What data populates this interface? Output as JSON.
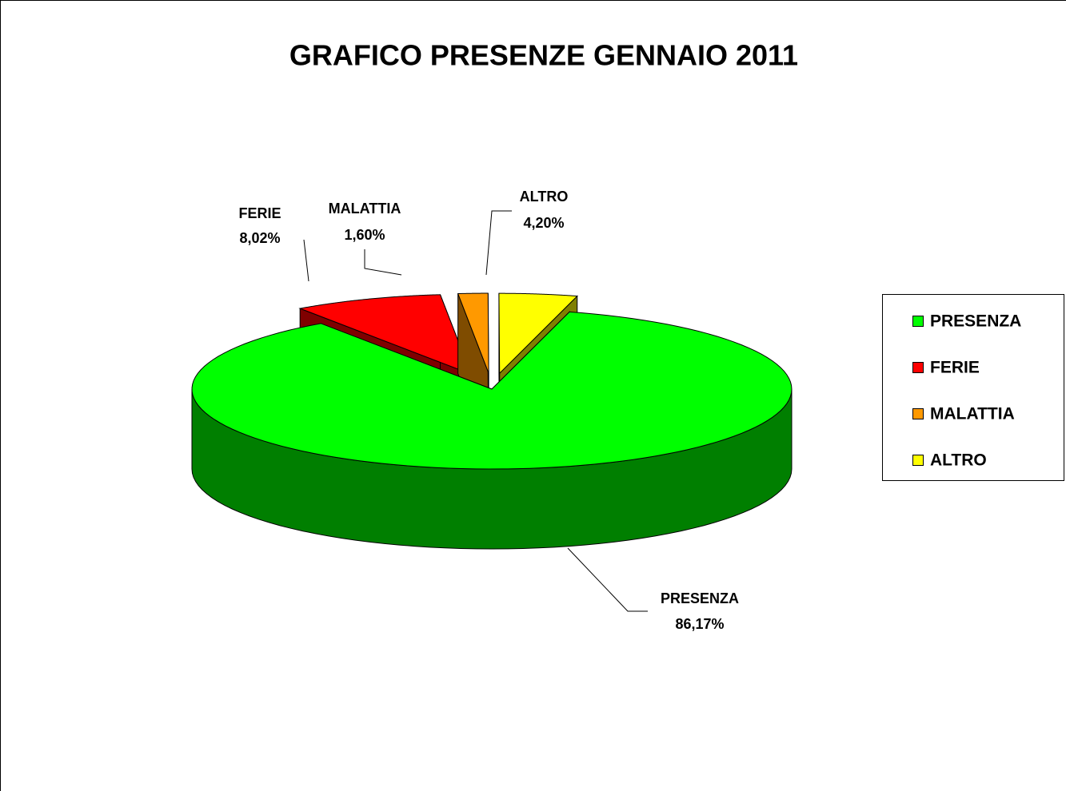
{
  "chart_data": {
    "type": "pie",
    "title": "GRAFICO PRESENZE GENNAIO 2011",
    "categories": [
      "PRESENZA",
      "FERIE",
      "MALATTIA",
      "ALTRO"
    ],
    "values": [
      86.17,
      8.02,
      1.6,
      4.2
    ],
    "value_labels": [
      "86,17%",
      "8,02%",
      "1,60%",
      "4,20%"
    ],
    "colors": [
      "#00ff00",
      "#ff0000",
      "#ff9900",
      "#ffff00"
    ],
    "legend": "right"
  }
}
